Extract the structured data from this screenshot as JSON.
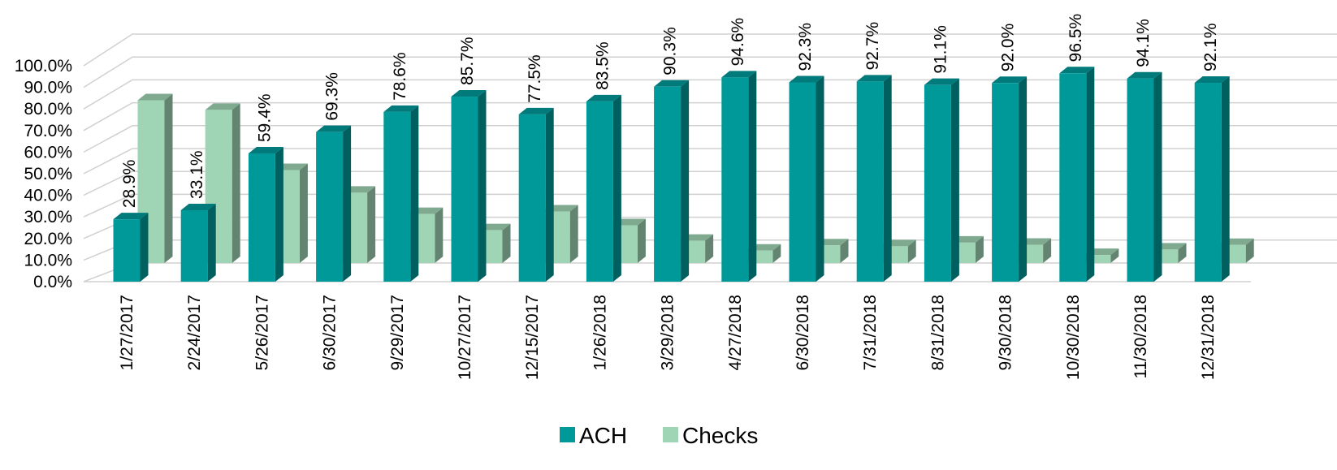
{
  "chart_data": {
    "type": "bar",
    "style": "3d-clustered-column",
    "categories": [
      "1/27/2017",
      "2/24/2017",
      "5/26/2017",
      "6/30/2017",
      "9/29/2017",
      "10/27/2017",
      "12/15/2017",
      "1/26/2018",
      "3/29/2018",
      "4/27/2018",
      "6/30/2018",
      "7/31/2018",
      "8/31/2018",
      "9/30/2018",
      "10/30/2018",
      "11/30/2018",
      "12/31/2018"
    ],
    "series": [
      {
        "name": "ACH",
        "color": "#009999",
        "values": [
          28.9,
          33.1,
          59.4,
          69.3,
          78.6,
          85.7,
          77.5,
          83.5,
          90.3,
          94.6,
          92.3,
          92.7,
          91.1,
          92.0,
          96.5,
          94.1,
          92.1
        ],
        "data_labels": [
          "28.9%",
          "33.1%",
          "59.4%",
          "69.3%",
          "78.6%",
          "85.7%",
          "77.5%",
          "83.5%",
          "90.3%",
          "94.6%",
          "92.3%",
          "92.7%",
          "91.1%",
          "92.0%",
          "96.5%",
          "94.1%",
          "92.1%"
        ]
      },
      {
        "name": "Checks",
        "color": "#9fd5b4",
        "values": [
          71.1,
          66.9,
          40.6,
          30.7,
          21.4,
          14.3,
          22.5,
          16.5,
          9.7,
          5.4,
          7.7,
          7.3,
          8.9,
          8.0,
          3.5,
          5.9,
          7.9
        ]
      }
    ],
    "y_ticks": [
      "0.0%",
      "10.0%",
      "20.0%",
      "30.0%",
      "40.0%",
      "50.0%",
      "60.0%",
      "70.0%",
      "80.0%",
      "90.0%",
      "100.0%"
    ],
    "ylim": [
      0,
      100
    ],
    "grid": true,
    "legend_position": "bottom"
  }
}
